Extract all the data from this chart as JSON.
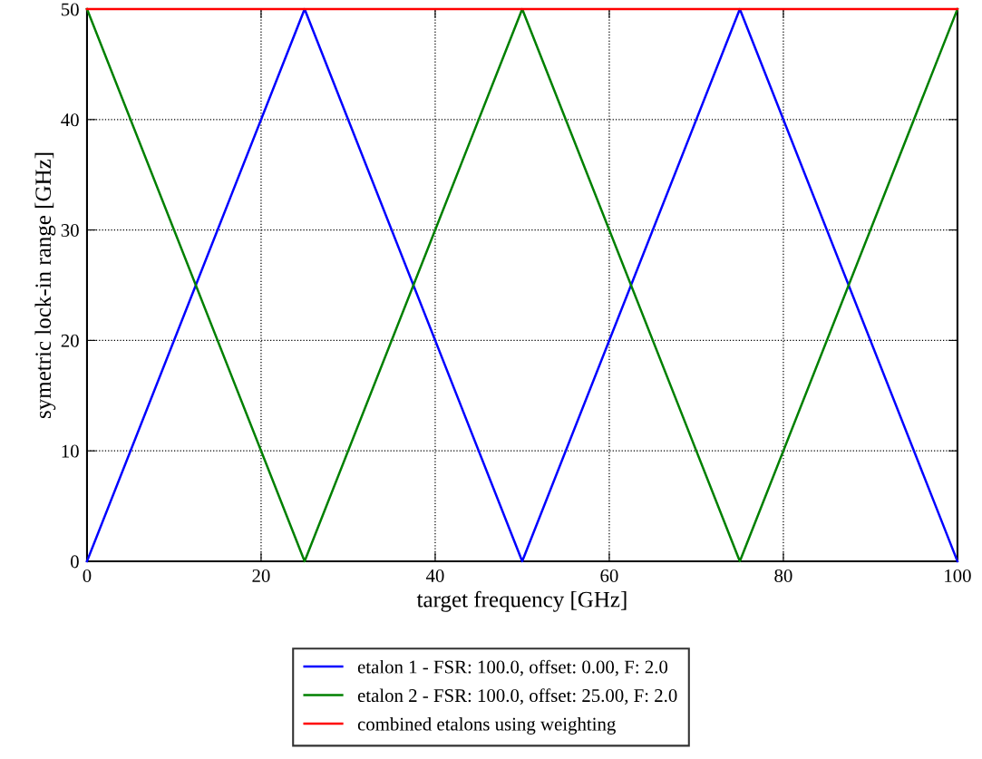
{
  "chart_data": {
    "type": "line",
    "xlabel": "target frequency [GHz]",
    "ylabel": "symetric lock-in range [GHz]",
    "xlim": [
      0,
      100
    ],
    "xticks": [
      0,
      20,
      40,
      60,
      80,
      100
    ],
    "ylim": [
      0,
      50
    ],
    "yticks": [
      0,
      10,
      20,
      30,
      40,
      50
    ],
    "grid": true,
    "legend": "bottom",
    "series": [
      {
        "name": "etalon 1 - FSR: 100.0, offset: 0.00, F: 2.0",
        "color": "#0000ff",
        "x": [
          0,
          25,
          50,
          75,
          100
        ],
        "values": [
          0,
          50,
          0,
          50,
          0
        ]
      },
      {
        "name": "etalon 2 - FSR: 100.0, offset: 25.00, F: 2.0",
        "color": "#008000",
        "x": [
          0,
          25,
          50,
          75,
          100
        ],
        "values": [
          50,
          0,
          50,
          0,
          50
        ]
      },
      {
        "name": "combined etalons using weighting",
        "color": "#ff0000",
        "x": [
          0,
          100
        ],
        "values": [
          50,
          50
        ]
      }
    ]
  }
}
